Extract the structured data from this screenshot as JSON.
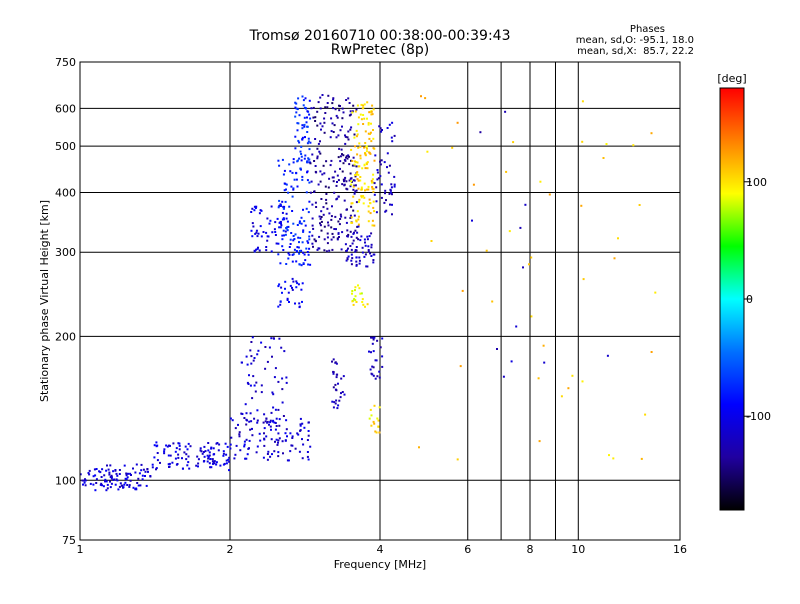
{
  "chart_data": {
    "type": "scatter",
    "title": "Tromsø 20160710 00:38:00-00:39:43",
    "subtitle": "RwPretec (8p)",
    "xlabel": "Frequency [MHz]",
    "ylabel": "Stationary phase Virtual Height [km]",
    "x_scale": "log",
    "y_scale": "log",
    "xlim": [
      1,
      16
    ],
    "ylim": [
      75,
      750
    ],
    "x_ticks": [
      1,
      2,
      4,
      6,
      8,
      10,
      16
    ],
    "x_gridlines": [
      2,
      4,
      6,
      7,
      8,
      9,
      10
    ],
    "y_ticks": [
      75,
      100,
      200,
      300,
      400,
      500,
      600,
      750
    ],
    "grid": true,
    "info": {
      "heading": "Phases",
      "line1": "mean, sd,O: -95.1, 18.0",
      "line2": "mean, sd,X:  85.7, 22.2"
    },
    "colorbar": {
      "unit": "[deg]",
      "range": [
        -180,
        180
      ],
      "ticks": [
        100,
        0,
        -100
      ],
      "colors": [
        "#ff0000",
        "#ff8000",
        "#ffff00",
        "#00ff00",
        "#00ffff",
        "#0070ff",
        "#0000ff",
        "#2000a0",
        "#000000"
      ]
    },
    "clusters": [
      {
        "f": [
          1.0,
          1.4
        ],
        "h": [
          95,
          108
        ],
        "n": 110,
        "phase": -110
      },
      {
        "f": [
          1.4,
          2.0
        ],
        "h": [
          105,
          120
        ],
        "n": 110,
        "phase": -108
      },
      {
        "f": [
          2.0,
          2.9
        ],
        "h": [
          110,
          135
        ],
        "n": 110,
        "phase": -112
      },
      {
        "f": [
          2.1,
          2.6
        ],
        "h": [
          130,
          200
        ],
        "n": 70,
        "phase": -115
      },
      {
        "f": [
          2.2,
          2.6
        ],
        "h": [
          300,
          380
        ],
        "n": 60,
        "phase": -100
      },
      {
        "f": [
          2.5,
          2.9
        ],
        "h": [
          280,
          470
        ],
        "n": 130,
        "phase": -80
      },
      {
        "f": [
          2.7,
          2.9
        ],
        "h": [
          460,
          640
        ],
        "n": 60,
        "phase": -75
      },
      {
        "f": [
          2.5,
          2.8
        ],
        "h": [
          230,
          265
        ],
        "n": 30,
        "phase": -95
      },
      {
        "f": [
          2.9,
          3.6
        ],
        "h": [
          300,
          640
        ],
        "n": 240,
        "phase": -135
      },
      {
        "f": [
          3.2,
          3.4
        ],
        "h": [
          140,
          180
        ],
        "n": 30,
        "phase": -125
      },
      {
        "f": [
          3.4,
          3.9
        ],
        "h": [
          280,
          340
        ],
        "n": 60,
        "phase": -120
      },
      {
        "f": [
          3.5,
          3.9
        ],
        "h": [
          340,
          620
        ],
        "n": 140,
        "phase": 105
      },
      {
        "f": [
          3.5,
          3.8
        ],
        "h": [
          230,
          260
        ],
        "n": 20,
        "phase": 90
      },
      {
        "f": [
          3.9,
          4.3
        ],
        "h": [
          360,
          560
        ],
        "n": 50,
        "phase": -120
      },
      {
        "f": [
          3.8,
          4.05
        ],
        "h": [
          160,
          200
        ],
        "n": 25,
        "phase": -120
      },
      {
        "f": [
          3.8,
          4.0
        ],
        "h": [
          125,
          145
        ],
        "n": 15,
        "phase": 100
      },
      {
        "f": [
          4.5,
          14.5
        ],
        "h": [
          110,
          670
        ],
        "n": 45,
        "phase": 110
      },
      {
        "f": [
          5.5,
          12.0
        ],
        "h": [
          150,
          600
        ],
        "n": 12,
        "phase": -120
      }
    ]
  }
}
